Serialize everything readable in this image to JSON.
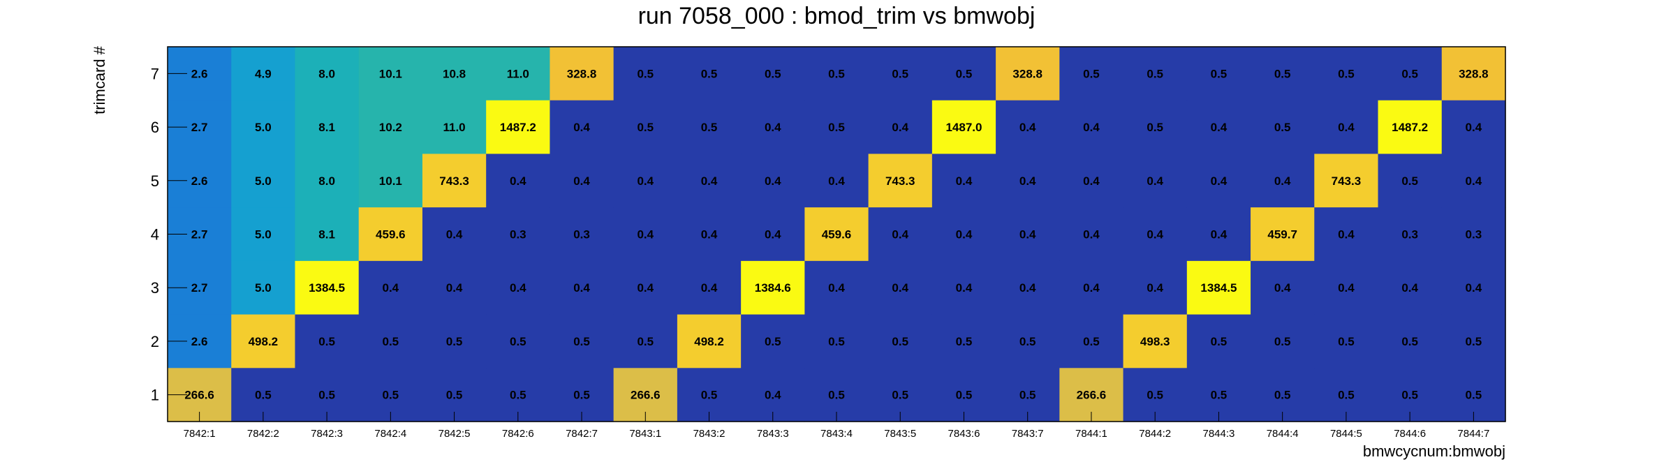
{
  "chart_data": {
    "type": "heatmap",
    "title": "run 7058_000 : bmod_trim vs bmwobj",
    "xlabel": "bmwcycnum:bmwobj",
    "ylabel": "trimcard #",
    "x_categories": [
      "7842:1",
      "7842:2",
      "7842:3",
      "7842:4",
      "7842:5",
      "7842:6",
      "7842:7",
      "7843:1",
      "7843:2",
      "7843:3",
      "7843:4",
      "7843:5",
      "7843:6",
      "7843:7",
      "7844:1",
      "7844:2",
      "7844:3",
      "7844:4",
      "7844:5",
      "7844:6",
      "7844:7"
    ],
    "y_categories": [
      "7",
      "6",
      "5",
      "4",
      "3",
      "2",
      "1"
    ],
    "values": [
      [
        2.6,
        4.9,
        8.0,
        10.1,
        10.8,
        11.0,
        328.8,
        0.5,
        0.5,
        0.5,
        0.5,
        0.5,
        0.5,
        328.8,
        0.5,
        0.5,
        0.5,
        0.5,
        0.5,
        0.5,
        328.8
      ],
      [
        2.7,
        5.0,
        8.1,
        10.2,
        11.0,
        1487.2,
        0.4,
        0.5,
        0.5,
        0.4,
        0.5,
        0.4,
        1487.0,
        0.4,
        0.4,
        0.5,
        0.4,
        0.5,
        0.4,
        1487.2,
        0.4
      ],
      [
        2.6,
        5.0,
        8.0,
        10.1,
        743.3,
        0.4,
        0.4,
        0.4,
        0.4,
        0.4,
        0.4,
        743.3,
        0.4,
        0.4,
        0.4,
        0.4,
        0.4,
        0.4,
        743.3,
        0.5,
        0.4
      ],
      [
        2.7,
        5.0,
        8.1,
        459.6,
        0.4,
        0.3,
        0.3,
        0.4,
        0.4,
        0.4,
        459.6,
        0.4,
        0.4,
        0.4,
        0.4,
        0.4,
        0.4,
        459.7,
        0.4,
        0.3,
        0.3
      ],
      [
        2.7,
        5.0,
        1384.5,
        0.4,
        0.4,
        0.4,
        0.4,
        0.4,
        0.4,
        1384.6,
        0.4,
        0.4,
        0.4,
        0.4,
        0.4,
        0.4,
        1384.5,
        0.4,
        0.4,
        0.4,
        0.4
      ],
      [
        2.6,
        498.2,
        0.5,
        0.5,
        0.5,
        0.5,
        0.5,
        0.5,
        498.2,
        0.5,
        0.5,
        0.5,
        0.5,
        0.5,
        0.5,
        498.3,
        0.5,
        0.5,
        0.5,
        0.5,
        0.5
      ],
      [
        266.6,
        0.5,
        0.5,
        0.5,
        0.5,
        0.5,
        0.5,
        266.6,
        0.5,
        0.4,
        0.5,
        0.5,
        0.5,
        0.5,
        266.6,
        0.5,
        0.5,
        0.5,
        0.5,
        0.5,
        0.5
      ]
    ],
    "colors": {
      "low": "#263ca8",
      "tier2": "#1a7fd6",
      "tier5": "#15a0d0",
      "tier8": "#1cb0b8",
      "tier10": "#26b4ac",
      "tier250": "#dcbe48",
      "tier300": "#f2c135",
      "tier450": "#f4cd2e",
      "tier1300": "#fafa12"
    },
    "grid": false,
    "legend": "none"
  }
}
